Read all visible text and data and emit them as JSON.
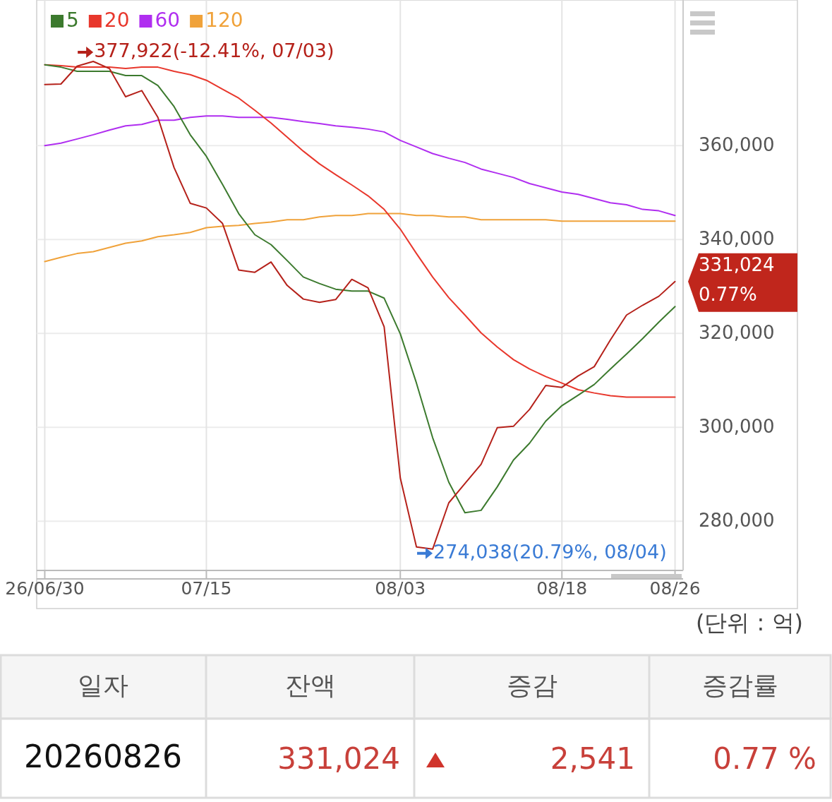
{
  "chart_data": [
    {
      "type": "line",
      "categories": [
        "26/06/30",
        null,
        null,
        null,
        null,
        null,
        null,
        null,
        null,
        null,
        "07/15",
        null,
        null,
        null,
        null,
        null,
        null,
        null,
        null,
        null,
        null,
        null,
        "08/03",
        null,
        null,
        null,
        null,
        null,
        null,
        null,
        null,
        null,
        "08/18",
        null,
        null,
        null,
        null,
        null,
        null,
        "08/26"
      ],
      "series": [
        {
          "color": "#b5211a",
          "values": [
            373000,
            373100,
            376900,
            377922,
            376400,
            370400,
            371700,
            366000,
            355300,
            347700,
            346700,
            343400,
            333500,
            333000,
            335200,
            330200,
            327300,
            326600,
            327200,
            331500,
            329700,
            321400,
            289200,
            274500,
            274038,
            283900,
            288000,
            292100,
            299900,
            300200,
            303800,
            308900,
            308500,
            310900,
            312900,
            318600,
            323900,
            326000,
            327900,
            331024
          ]
        },
        {
          "name": "5",
          "color": "#3c7a2e",
          "values": [
            377200,
            376700,
            375800,
            375800,
            375800,
            374900,
            374900,
            372800,
            368300,
            362300,
            357700,
            351700,
            345500,
            341000,
            338900,
            335500,
            332000,
            330600,
            329400,
            329000,
            329000,
            327500,
            319900,
            309400,
            297800,
            288300,
            281800,
            282300,
            287300,
            293000,
            296600,
            301300,
            304600,
            306800,
            309100,
            312400,
            315600,
            318900,
            322400,
            325700
          ]
        },
        {
          "name": "20",
          "color": "#e8372c",
          "values": [
            377200,
            377000,
            376700,
            376700,
            376700,
            376400,
            376700,
            376700,
            375800,
            375100,
            373900,
            372000,
            370100,
            367500,
            364800,
            361800,
            358800,
            356100,
            353800,
            351600,
            349300,
            346400,
            342200,
            337000,
            332000,
            327600,
            323900,
            320100,
            317100,
            314400,
            312400,
            310800,
            309400,
            308000,
            307300,
            306700,
            306400,
            306400,
            306400,
            306400
          ]
        },
        {
          "name": "60",
          "color": "#b02ef0",
          "values": [
            360000,
            360500,
            361400,
            362300,
            363300,
            364200,
            364500,
            365400,
            365400,
            366000,
            366300,
            366300,
            366000,
            366000,
            366000,
            365600,
            365100,
            364700,
            364200,
            363900,
            363500,
            362900,
            361100,
            359700,
            358300,
            357300,
            356400,
            355000,
            354100,
            353200,
            351900,
            351000,
            350100,
            349600,
            348700,
            347800,
            347400,
            346400,
            346100,
            345100
          ]
        },
        {
          "name": "120",
          "color": "#f0a23a",
          "values": [
            335300,
            336200,
            337000,
            337400,
            338300,
            339200,
            339700,
            340600,
            341000,
            341500,
            342500,
            342800,
            343000,
            343400,
            343700,
            344200,
            344200,
            344800,
            345100,
            345100,
            345500,
            345500,
            345500,
            345100,
            345100,
            344800,
            344800,
            344200,
            344200,
            344200,
            344200,
            344200,
            343900,
            343900,
            343900,
            343900,
            343900,
            343900,
            343900,
            343900
          ]
        }
      ],
      "ylim": [
        269500,
        391000
      ],
      "yticks": [
        {
          "value": 280000,
          "label": "280,000"
        },
        {
          "value": 300000,
          "label": "300,000"
        },
        {
          "value": 320000,
          "label": "320,000"
        },
        {
          "value": 340000,
          "label": "340,000"
        },
        {
          "value": 360000,
          "label": "360,000"
        }
      ],
      "grid": true,
      "legend": "top left",
      "annotations": [
        "377,922(-12.41%, 07/03)",
        "274,038(20.79%, 08/04)",
        "331,024\n0.77%",
        "(단위 : 억)"
      ]
    },
    {
      "type": "other",
      "categories": [
        "일자",
        "잔액",
        "증감",
        "증감률"
      ],
      "annotations": [
        "20260826",
        "331,024",
        "2,541",
        "0.77 %"
      ]
    }
  ]
}
